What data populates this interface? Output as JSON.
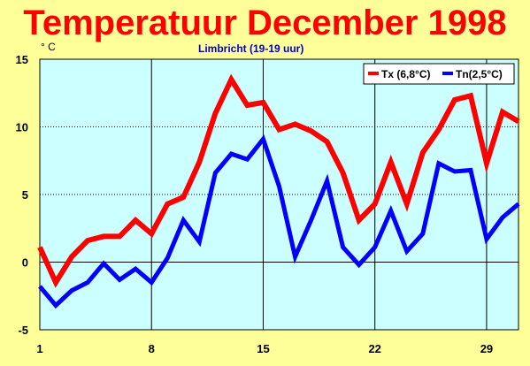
{
  "chart_data": {
    "type": "line",
    "title": "Temperatuur December 1998",
    "subtitle": "Limbricht (19-19 uur)",
    "ylabel": "° C",
    "xlim": [
      1,
      31
    ],
    "ylim": [
      -5,
      15
    ],
    "x_ticks": [
      1,
      8,
      15,
      22,
      29
    ],
    "y_ticks": [
      15,
      10,
      5,
      0,
      -5
    ],
    "grid": true,
    "legend_position": "top-right",
    "x": [
      1,
      2,
      3,
      4,
      5,
      6,
      7,
      8,
      9,
      10,
      11,
      12,
      13,
      14,
      15,
      16,
      17,
      18,
      19,
      20,
      21,
      22,
      23,
      24,
      25,
      26,
      27,
      28,
      29,
      30,
      31
    ],
    "series": [
      {
        "name": "Tx (6,8°C)",
        "color": "#ff0000",
        "values": [
          1.1,
          -1.5,
          0.4,
          1.6,
          1.9,
          1.9,
          3.1,
          2.1,
          4.3,
          4.8,
          7.4,
          11.0,
          13.5,
          11.6,
          11.8,
          9.8,
          10.2,
          9.7,
          8.9,
          6.6,
          3.1,
          4.3,
          7.4,
          4.3,
          8.1,
          9.8,
          12.0,
          12.3,
          7.3,
          11.1,
          10.4
        ]
      },
      {
        "name": "Tn(2,5°C)",
        "color": "#0000ff",
        "values": [
          -1.8,
          -3.2,
          -2.1,
          -1.5,
          -0.1,
          -1.3,
          -0.5,
          -1.5,
          0.3,
          3.1,
          1.5,
          6.6,
          8.0,
          7.6,
          9.1,
          5.6,
          0.4,
          3.1,
          6.0,
          1.1,
          -0.2,
          1.1,
          3.8,
          0.8,
          2.1,
          7.3,
          6.7,
          6.8,
          1.7,
          3.3,
          4.3
        ]
      }
    ]
  }
}
